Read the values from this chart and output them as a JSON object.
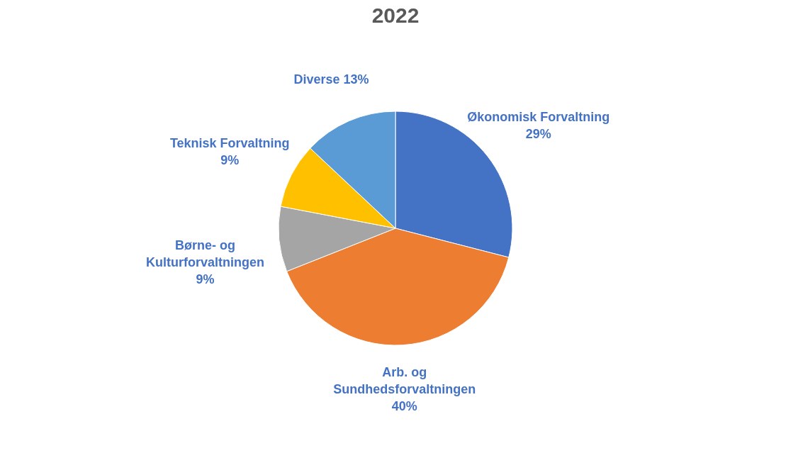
{
  "chart_data": {
    "type": "pie",
    "title": "2022",
    "categories": [
      "Økonomisk Forvaltning",
      "Arb. og Sundhedsforvaltningen",
      "Børne- og Kulturforvaltningen",
      "Teknisk Forvaltning",
      "Diverse"
    ],
    "values": [
      29,
      40,
      9,
      9,
      13
    ],
    "colors": [
      "#4472c4",
      "#ed7d31",
      "#a5a5a5",
      "#ffc000",
      "#5b9bd5"
    ],
    "value_labels": [
      "29%",
      "40%",
      "9%",
      "9%",
      "13%"
    ],
    "legend": false
  }
}
